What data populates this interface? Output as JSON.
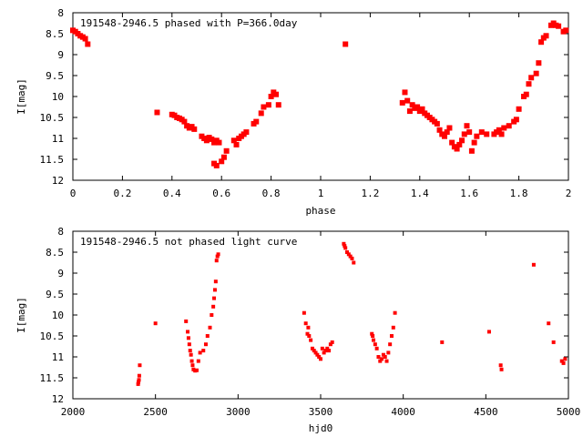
{
  "chart_data": [
    {
      "type": "scatter",
      "title": "191548-2946.5 phased with P=366.0day",
      "xlabel": "phase",
      "ylabel": "I[mag]",
      "xlim": [
        0,
        2
      ],
      "ylim": [
        8,
        12
      ],
      "y_inverted": true,
      "xticks": [
        "0",
        "0.2",
        "0.4",
        "0.6",
        "0.8",
        "1",
        "1.2",
        "1.4",
        "1.6",
        "1.8",
        "2"
      ],
      "yticks": [
        "8",
        "8.5",
        "9",
        "9.5",
        "10",
        "10.5",
        "11",
        "11.5",
        "12"
      ],
      "series": [
        {
          "color": "#ff0000",
          "x": [
            0.0,
            0.01,
            0.02,
            0.03,
            0.04,
            0.05,
            0.06,
            0.34,
            0.4,
            0.41,
            0.42,
            0.43,
            0.44,
            0.45,
            0.46,
            0.47,
            0.48,
            0.49,
            0.52,
            0.53,
            0.54,
            0.55,
            0.56,
            0.57,
            0.57,
            0.58,
            0.58,
            0.59,
            0.6,
            0.61,
            0.62,
            0.65,
            0.66,
            0.67,
            0.68,
            0.69,
            0.7,
            0.73,
            0.74,
            0.76,
            0.77,
            0.79,
            0.8,
            0.81,
            0.82,
            0.83,
            1.1,
            1.33,
            1.34,
            1.35,
            1.36,
            1.37,
            1.38,
            1.39,
            1.4,
            1.41,
            1.42,
            1.43,
            1.44,
            1.45,
            1.46,
            1.47,
            1.48,
            1.49,
            1.5,
            1.51,
            1.52,
            1.53,
            1.54,
            1.55,
            1.56,
            1.57,
            1.58,
            1.59,
            1.6,
            1.61,
            1.62,
            1.63,
            1.65,
            1.67,
            1.7,
            1.71,
            1.72,
            1.73,
            1.74,
            1.76,
            1.78,
            1.79,
            1.8,
            1.82,
            1.83,
            1.84,
            1.85,
            1.87,
            1.88,
            1.89,
            1.9,
            1.91,
            1.93,
            1.94,
            1.95,
            1.96,
            1.98,
            1.99
          ],
          "y": [
            8.42,
            8.45,
            8.5,
            8.55,
            8.58,
            8.62,
            8.75,
            10.38,
            10.43,
            10.45,
            10.5,
            10.52,
            10.55,
            10.6,
            10.7,
            10.75,
            10.72,
            10.78,
            10.95,
            11.0,
            11.05,
            10.98,
            11.02,
            11.1,
            11.6,
            11.65,
            11.05,
            11.1,
            11.55,
            11.45,
            11.3,
            11.05,
            11.15,
            11.0,
            10.95,
            10.9,
            10.85,
            10.65,
            10.6,
            10.4,
            10.25,
            10.2,
            10.0,
            9.9,
            9.95,
            10.2,
            8.75,
            10.15,
            9.9,
            10.1,
            10.35,
            10.2,
            10.28,
            10.25,
            10.35,
            10.3,
            10.4,
            10.45,
            10.5,
            10.55,
            10.6,
            10.65,
            10.8,
            10.9,
            10.95,
            10.85,
            10.75,
            11.1,
            11.2,
            11.25,
            11.15,
            11.05,
            10.9,
            10.7,
            10.85,
            11.3,
            11.1,
            10.95,
            10.85,
            10.9,
            10.9,
            10.85,
            10.8,
            10.9,
            10.75,
            10.7,
            10.6,
            10.55,
            10.3,
            10.0,
            9.95,
            9.7,
            9.55,
            9.45,
            9.2,
            8.7,
            8.6,
            8.55,
            8.3,
            8.25,
            8.3,
            8.32,
            8.45,
            8.42
          ]
        }
      ]
    },
    {
      "type": "scatter",
      "title": "191548-2946.5 not phased light curve",
      "xlabel": "hjd0",
      "ylabel": "I[mag]",
      "xlim": [
        2000,
        5000
      ],
      "ylim": [
        8,
        12
      ],
      "y_inverted": true,
      "xticks": [
        "2000",
        "2500",
        "3000",
        "3500",
        "4000",
        "4500",
        "5000"
      ],
      "yticks": [
        "8",
        "8.5",
        "9",
        "9.5",
        "10",
        "10.5",
        "11",
        "11.5",
        "12"
      ],
      "series": [
        {
          "color": "#ff0000",
          "x": [
            2395,
            2397,
            2400,
            2402,
            2405,
            2500,
            2685,
            2695,
            2700,
            2705,
            2710,
            2715,
            2720,
            2725,
            2730,
            2740,
            2750,
            2760,
            2770,
            2790,
            2805,
            2815,
            2830,
            2840,
            2850,
            2855,
            2860,
            2865,
            2870,
            2875,
            2880,
            3400,
            3410,
            3420,
            3425,
            3430,
            3440,
            3450,
            3460,
            3470,
            3480,
            3490,
            3500,
            3510,
            3520,
            3530,
            3540,
            3550,
            3560,
            3570,
            3640,
            3645,
            3650,
            3660,
            3670,
            3680,
            3690,
            3700,
            3810,
            3815,
            3820,
            3830,
            3840,
            3850,
            3860,
            3870,
            3880,
            3890,
            3900,
            3910,
            3920,
            3930,
            3940,
            3950,
            4235,
            4520,
            4590,
            4595,
            4790,
            4880,
            4910,
            4960,
            4970,
            4980
          ],
          "y": [
            11.65,
            11.6,
            11.55,
            11.45,
            11.2,
            10.2,
            10.15,
            10.4,
            10.55,
            10.7,
            10.85,
            10.95,
            11.1,
            11.2,
            11.3,
            11.33,
            11.32,
            11.1,
            10.9,
            10.85,
            10.7,
            10.5,
            10.3,
            10.0,
            9.8,
            9.6,
            9.4,
            9.2,
            8.7,
            8.6,
            8.55,
            9.95,
            10.2,
            10.45,
            10.3,
            10.5,
            10.6,
            10.8,
            10.85,
            10.9,
            10.95,
            11.0,
            11.05,
            10.8,
            10.9,
            10.85,
            10.8,
            10.85,
            10.7,
            10.65,
            8.3,
            8.35,
            8.4,
            8.5,
            8.55,
            8.6,
            8.65,
            8.75,
            10.45,
            10.5,
            10.6,
            10.7,
            10.8,
            11.0,
            11.1,
            11.05,
            10.95,
            11.0,
            11.1,
            10.9,
            10.7,
            10.5,
            10.3,
            9.95,
            10.65,
            10.4,
            11.2,
            11.3,
            8.8,
            10.2,
            10.65,
            11.1,
            11.15,
            11.05
          ]
        }
      ]
    }
  ]
}
